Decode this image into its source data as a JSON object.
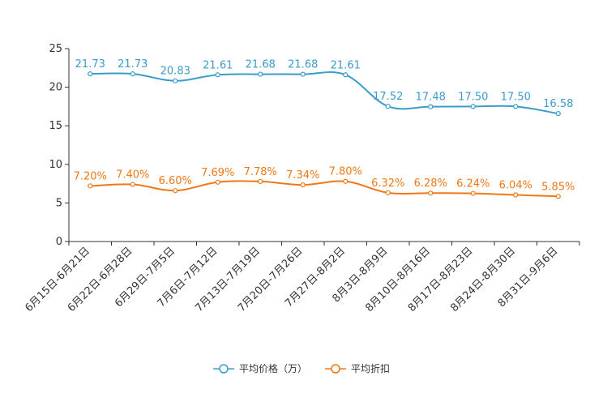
{
  "chart_data": {
    "type": "line",
    "title": "",
    "xlabel": "",
    "ylabel": "",
    "ylim": [
      0,
      25
    ],
    "yticks": [
      0,
      5,
      10,
      15,
      20,
      25
    ],
    "categories": [
      "6月15日-6月21日",
      "6月22日-6月28日",
      "6月29日-7月5日",
      "7月6日-7月12日",
      "7月13日-7月19日",
      "7月20日-7月26日",
      "7月27日-8月2日",
      "8月3日-8月9日",
      "8月10日-8月16日",
      "8月17日-8月23日",
      "8月24日-8月30日",
      "8月31日-9月6日"
    ],
    "series": [
      {
        "name": "平均价格（万）",
        "color": "#3c9ccc",
        "values": [
          21.73,
          21.73,
          20.83,
          21.61,
          21.68,
          21.68,
          21.61,
          17.52,
          17.48,
          17.5,
          17.5,
          16.58
        ],
        "labels": [
          "21.73",
          "21.73",
          "20.83",
          "21.61",
          "21.68",
          "21.68",
          "21.61",
          "17.52",
          "17.48",
          "17.50",
          "17.50",
          "16.58"
        ]
      },
      {
        "name": "平均折扣",
        "color": "#f07818",
        "values": [
          7.2,
          7.4,
          6.6,
          7.69,
          7.78,
          7.34,
          7.8,
          6.32,
          6.28,
          6.24,
          6.04,
          5.85
        ],
        "labels": [
          "7.20%",
          "7.40%",
          "6.60%",
          "7.69%",
          "7.78%",
          "7.34%",
          "7.80%",
          "6.32%",
          "6.28%",
          "6.24%",
          "6.04%",
          "5.85%"
        ]
      }
    ],
    "legend_position": "bottom-center"
  }
}
